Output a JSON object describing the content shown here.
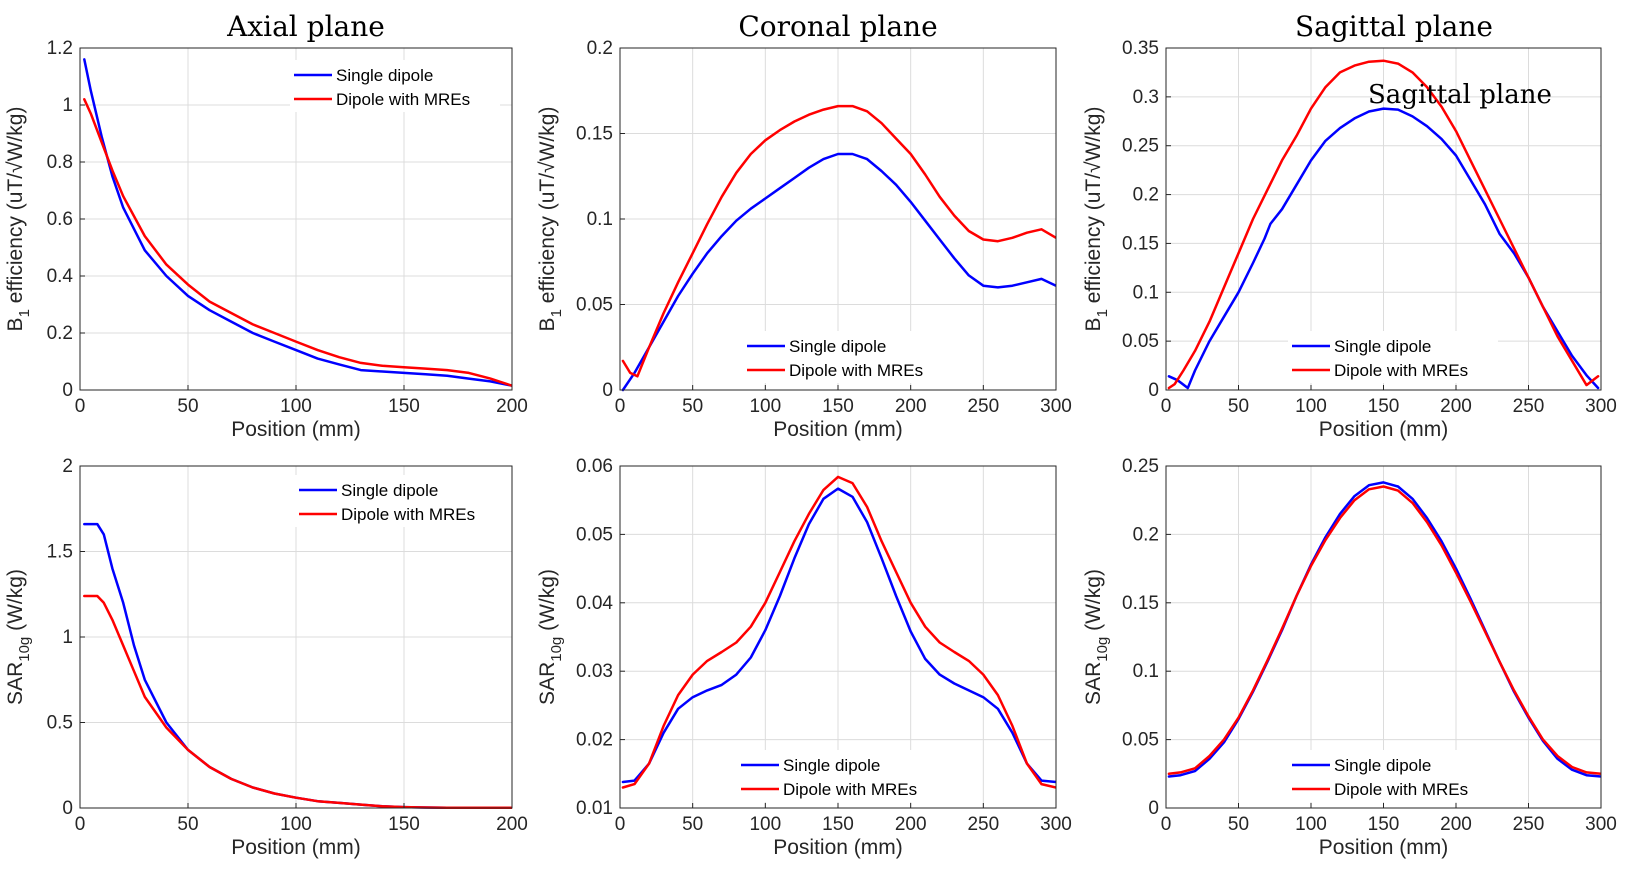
{
  "figure": {
    "column_titles": [
      "Axial plane",
      "Coronal plane",
      "Sagittal plane"
    ],
    "stray_annotation": "Sagittal plane",
    "colors": {
      "single": "#0000ff",
      "mres": "#ff0000",
      "grid": "#dcdcdc",
      "axis": "#262626"
    }
  },
  "chart_data": [
    {
      "id": "b1-axial",
      "type": "line",
      "xlabel": "Position (mm)",
      "ylabel": "B1 efficiency (uT/√W/kg)",
      "xlim": [
        0,
        200
      ],
      "ylim": [
        0,
        1.2
      ],
      "xticks": [
        0,
        50,
        100,
        150,
        200
      ],
      "xtick_labels": [
        "0",
        "50",
        "100",
        "150",
        "200"
      ],
      "yticks": [
        0,
        0.2,
        0.4,
        0.6,
        0.8,
        1,
        1.2
      ],
      "ytick_labels": [
        "0",
        "0.2",
        "0.4",
        "0.6",
        "0.8",
        "1",
        "1.2"
      ],
      "legend": [
        "Single dipole",
        "Dipole with MREs"
      ],
      "legend_position": "top-right",
      "series": [
        {
          "name": "Single dipole",
          "color": "#0000ff",
          "x": [
            2,
            5,
            10,
            15,
            20,
            30,
            40,
            50,
            60,
            70,
            80,
            90,
            100,
            110,
            120,
            130,
            140,
            150,
            160,
            170,
            180,
            190,
            200
          ],
          "y": [
            1.16,
            1.05,
            0.89,
            0.75,
            0.64,
            0.49,
            0.4,
            0.33,
            0.28,
            0.24,
            0.2,
            0.17,
            0.14,
            0.11,
            0.09,
            0.07,
            0.065,
            0.06,
            0.055,
            0.05,
            0.04,
            0.03,
            0.015
          ]
        },
        {
          "name": "Dipole with MREs",
          "color": "#ff0000",
          "x": [
            2,
            5,
            10,
            15,
            20,
            30,
            40,
            50,
            60,
            70,
            80,
            90,
            100,
            110,
            120,
            130,
            140,
            150,
            160,
            170,
            180,
            190,
            200
          ],
          "y": [
            1.02,
            0.97,
            0.87,
            0.77,
            0.68,
            0.54,
            0.44,
            0.37,
            0.31,
            0.27,
            0.23,
            0.2,
            0.17,
            0.14,
            0.115,
            0.095,
            0.085,
            0.08,
            0.075,
            0.07,
            0.06,
            0.04,
            0.015
          ]
        }
      ]
    },
    {
      "id": "b1-coronal",
      "type": "line",
      "xlabel": "Position (mm)",
      "ylabel": "B1 efficiency (uT/√W/kg)",
      "xlim": [
        0,
        300
      ],
      "ylim": [
        0,
        0.2
      ],
      "xticks": [
        0,
        50,
        100,
        150,
        200,
        250,
        300
      ],
      "xtick_labels": [
        "0",
        "50",
        "100",
        "150",
        "200",
        "250",
        "300"
      ],
      "yticks": [
        0,
        0.05,
        0.1,
        0.15,
        0.2
      ],
      "ytick_labels": [
        "0",
        "0.05",
        "0.1",
        "0.15",
        "0.2"
      ],
      "legend": [
        "Single dipole",
        "Dipole with MREs"
      ],
      "legend_position": "bottom-center",
      "series": [
        {
          "name": "Single dipole",
          "color": "#0000ff",
          "x": [
            2,
            10,
            20,
            30,
            40,
            50,
            60,
            70,
            80,
            90,
            100,
            110,
            120,
            130,
            140,
            150,
            160,
            170,
            180,
            190,
            200,
            210,
            220,
            230,
            240,
            250,
            260,
            270,
            280,
            290,
            300
          ],
          "y": [
            0,
            0.01,
            0.025,
            0.04,
            0.055,
            0.068,
            0.08,
            0.09,
            0.099,
            0.106,
            0.112,
            0.118,
            0.124,
            0.13,
            0.135,
            0.138,
            0.138,
            0.135,
            0.128,
            0.12,
            0.11,
            0.099,
            0.088,
            0.077,
            0.067,
            0.061,
            0.06,
            0.061,
            0.063,
            0.065,
            0.061
          ]
        },
        {
          "name": "Dipole with MREs",
          "color": "#ff0000",
          "x": [
            2,
            7,
            12,
            20,
            30,
            40,
            50,
            60,
            70,
            80,
            90,
            100,
            110,
            120,
            130,
            140,
            150,
            160,
            170,
            180,
            190,
            200,
            210,
            220,
            230,
            240,
            250,
            260,
            270,
            280,
            290,
            300
          ],
          "y": [
            0.017,
            0.01,
            0.008,
            0.025,
            0.045,
            0.063,
            0.08,
            0.097,
            0.113,
            0.127,
            0.138,
            0.146,
            0.152,
            0.157,
            0.161,
            0.164,
            0.166,
            0.166,
            0.163,
            0.156,
            0.147,
            0.138,
            0.126,
            0.113,
            0.102,
            0.093,
            0.088,
            0.087,
            0.089,
            0.092,
            0.094,
            0.089
          ]
        }
      ]
    },
    {
      "id": "b1-sagittal",
      "type": "line",
      "xlabel": "Position (mm)",
      "ylabel": "B1 efficiency (uT/√W/kg)",
      "xlim": [
        0,
        300
      ],
      "ylim": [
        0,
        0.35
      ],
      "xticks": [
        0,
        50,
        100,
        150,
        200,
        250,
        300
      ],
      "xtick_labels": [
        "0",
        "50",
        "100",
        "150",
        "200",
        "250",
        "300"
      ],
      "yticks": [
        0,
        0.05,
        0.1,
        0.15,
        0.2,
        0.25,
        0.3,
        0.35
      ],
      "ytick_labels": [
        "0",
        "0.05",
        "0.1",
        "0.15",
        "0.2",
        "0.25",
        "0.3",
        "0.35"
      ],
      "legend": [
        "Single dipole",
        "Dipole with MREs"
      ],
      "legend_position": "bottom-center",
      "series": [
        {
          "name": "Single dipole",
          "color": "#0000ff",
          "x": [
            2,
            8,
            15,
            20,
            30,
            40,
            50,
            60,
            68,
            72,
            80,
            90,
            100,
            110,
            120,
            130,
            140,
            150,
            160,
            170,
            180,
            190,
            200,
            210,
            220,
            230,
            240,
            250,
            260,
            270,
            280,
            290,
            298
          ],
          "y": [
            0.014,
            0.01,
            0.002,
            0.02,
            0.05,
            0.075,
            0.1,
            0.13,
            0.155,
            0.17,
            0.185,
            0.21,
            0.235,
            0.255,
            0.268,
            0.278,
            0.285,
            0.288,
            0.287,
            0.28,
            0.27,
            0.257,
            0.24,
            0.215,
            0.19,
            0.16,
            0.14,
            0.115,
            0.085,
            0.06,
            0.035,
            0.015,
            0.002
          ]
        },
        {
          "name": "Dipole with MREs",
          "color": "#ff0000",
          "x": [
            2,
            6,
            12,
            20,
            30,
            40,
            50,
            60,
            70,
            80,
            90,
            100,
            110,
            120,
            130,
            140,
            150,
            160,
            170,
            180,
            190,
            200,
            210,
            220,
            230,
            240,
            250,
            260,
            270,
            280,
            290,
            298
          ],
          "y": [
            0.002,
            0.006,
            0.02,
            0.04,
            0.07,
            0.105,
            0.14,
            0.175,
            0.205,
            0.235,
            0.26,
            0.288,
            0.31,
            0.325,
            0.332,
            0.336,
            0.337,
            0.334,
            0.325,
            0.31,
            0.29,
            0.265,
            0.235,
            0.205,
            0.175,
            0.145,
            0.115,
            0.085,
            0.055,
            0.03,
            0.005,
            0.014
          ]
        }
      ]
    },
    {
      "id": "sar-axial",
      "type": "line",
      "xlabel": "Position (mm)",
      "ylabel": "SAR10g (W/kg)",
      "xlim": [
        0,
        200
      ],
      "ylim": [
        0,
        2
      ],
      "xticks": [
        0,
        50,
        100,
        150,
        200
      ],
      "xtick_labels": [
        "0",
        "50",
        "100",
        "150",
        "200"
      ],
      "yticks": [
        0,
        0.5,
        1,
        1.5,
        2
      ],
      "ytick_labels": [
        "0",
        "0.5",
        "1",
        "1.5",
        "2"
      ],
      "legend": [
        "Single dipole",
        "Dipole with MREs"
      ],
      "legend_position": "top-right",
      "series": [
        {
          "name": "Single dipole",
          "color": "#0000ff",
          "x": [
            2,
            5,
            8,
            11,
            15,
            20,
            25,
            30,
            40,
            50,
            60,
            70,
            80,
            90,
            100,
            110,
            120,
            130,
            140,
            150,
            160,
            170,
            180,
            190,
            200
          ],
          "y": [
            1.66,
            1.66,
            1.66,
            1.6,
            1.4,
            1.2,
            0.95,
            0.75,
            0.5,
            0.34,
            0.24,
            0.17,
            0.12,
            0.085,
            0.06,
            0.04,
            0.03,
            0.02,
            0.01,
            0.005,
            0.003,
            0.002,
            0.001,
            0.001,
            0.001
          ]
        },
        {
          "name": "Dipole with MREs",
          "color": "#ff0000",
          "x": [
            2,
            5,
            8,
            11,
            15,
            20,
            25,
            30,
            40,
            50,
            60,
            70,
            80,
            90,
            100,
            110,
            120,
            130,
            140,
            150,
            160,
            170,
            180,
            190,
            200
          ],
          "y": [
            1.24,
            1.24,
            1.24,
            1.2,
            1.1,
            0.95,
            0.8,
            0.65,
            0.47,
            0.34,
            0.24,
            0.17,
            0.12,
            0.085,
            0.06,
            0.04,
            0.03,
            0.02,
            0.01,
            0.005,
            0.003,
            0.002,
            0.001,
            0.001,
            0.001
          ]
        }
      ]
    },
    {
      "id": "sar-coronal",
      "type": "line",
      "xlabel": "Position (mm)",
      "ylabel": "SAR10g (W/kg)",
      "xlim": [
        0,
        300
      ],
      "ylim": [
        0.01,
        0.06
      ],
      "xticks": [
        0,
        50,
        100,
        150,
        200,
        250,
        300
      ],
      "xtick_labels": [
        "0",
        "50",
        "100",
        "150",
        "200",
        "250",
        "300"
      ],
      "yticks": [
        0.01,
        0.02,
        0.03,
        0.04,
        0.05,
        0.06
      ],
      "ytick_labels": [
        "0.01",
        "0.02",
        "0.03",
        "0.04",
        "0.05",
        "0.06"
      ],
      "legend": [
        "Single dipole",
        "Dipole with MREs"
      ],
      "legend_position": "bottom-center",
      "series": [
        {
          "name": "Single dipole",
          "color": "#0000ff",
          "x": [
            2,
            10,
            20,
            30,
            40,
            50,
            60,
            70,
            80,
            90,
            100,
            110,
            120,
            130,
            140,
            150,
            160,
            170,
            180,
            190,
            200,
            210,
            220,
            230,
            240,
            250,
            260,
            270,
            280,
            290,
            300
          ],
          "y": [
            0.0138,
            0.014,
            0.0165,
            0.021,
            0.0245,
            0.0262,
            0.0272,
            0.028,
            0.0295,
            0.032,
            0.036,
            0.041,
            0.0465,
            0.0515,
            0.0552,
            0.0567,
            0.0555,
            0.0518,
            0.0465,
            0.041,
            0.0358,
            0.0318,
            0.0295,
            0.0282,
            0.0272,
            0.0262,
            0.0245,
            0.021,
            0.0165,
            0.014,
            0.0138
          ]
        },
        {
          "name": "Dipole with MREs",
          "color": "#ff0000",
          "x": [
            2,
            10,
            20,
            30,
            40,
            50,
            60,
            70,
            80,
            90,
            100,
            110,
            120,
            130,
            140,
            150,
            160,
            170,
            180,
            190,
            200,
            210,
            220,
            230,
            240,
            250,
            260,
            270,
            280,
            290,
            300
          ],
          "y": [
            0.013,
            0.0135,
            0.0165,
            0.022,
            0.0265,
            0.0295,
            0.0315,
            0.0328,
            0.0342,
            0.0365,
            0.04,
            0.0445,
            0.049,
            0.053,
            0.0565,
            0.0584,
            0.0575,
            0.054,
            0.049,
            0.0445,
            0.04,
            0.0365,
            0.0342,
            0.0328,
            0.0315,
            0.0295,
            0.0265,
            0.022,
            0.0165,
            0.0135,
            0.013
          ]
        }
      ]
    },
    {
      "id": "sar-sagittal",
      "type": "line",
      "xlabel": "Position (mm)",
      "ylabel": "SAR10g (W/kg)",
      "xlim": [
        0,
        300
      ],
      "ylim": [
        0,
        0.25
      ],
      "xticks": [
        0,
        50,
        100,
        150,
        200,
        250,
        300
      ],
      "xtick_labels": [
        "0",
        "50",
        "100",
        "150",
        "200",
        "250",
        "300"
      ],
      "yticks": [
        0,
        0.05,
        0.1,
        0.15,
        0.2,
        0.25
      ],
      "ytick_labels": [
        "0",
        "0.05",
        "0.1",
        "0.15",
        "0.2",
        "0.25"
      ],
      "legend": [
        "Single dipole",
        "Dipole with MREs"
      ],
      "legend_position": "bottom-center",
      "series": [
        {
          "name": "Single dipole",
          "color": "#0000ff",
          "x": [
            2,
            10,
            20,
            30,
            40,
            50,
            60,
            70,
            80,
            90,
            100,
            110,
            120,
            130,
            140,
            150,
            160,
            170,
            180,
            190,
            200,
            210,
            220,
            230,
            240,
            250,
            260,
            270,
            280,
            290,
            300
          ],
          "y": [
            0.023,
            0.024,
            0.027,
            0.036,
            0.048,
            0.065,
            0.085,
            0.107,
            0.13,
            0.155,
            0.178,
            0.198,
            0.215,
            0.228,
            0.236,
            0.238,
            0.235,
            0.226,
            0.212,
            0.195,
            0.175,
            0.153,
            0.13,
            0.107,
            0.085,
            0.066,
            0.049,
            0.036,
            0.028,
            0.024,
            0.023
          ]
        },
        {
          "name": "Dipole with MREs",
          "color": "#ff0000",
          "x": [
            2,
            10,
            20,
            30,
            40,
            50,
            60,
            70,
            80,
            90,
            100,
            110,
            120,
            130,
            140,
            150,
            160,
            170,
            180,
            190,
            200,
            210,
            220,
            230,
            240,
            250,
            260,
            270,
            280,
            290,
            300
          ],
          "y": [
            0.025,
            0.026,
            0.029,
            0.038,
            0.05,
            0.066,
            0.086,
            0.108,
            0.131,
            0.155,
            0.177,
            0.196,
            0.212,
            0.225,
            0.233,
            0.235,
            0.232,
            0.223,
            0.209,
            0.192,
            0.172,
            0.151,
            0.129,
            0.107,
            0.086,
            0.067,
            0.05,
            0.038,
            0.03,
            0.026,
            0.025
          ]
        }
      ]
    }
  ]
}
